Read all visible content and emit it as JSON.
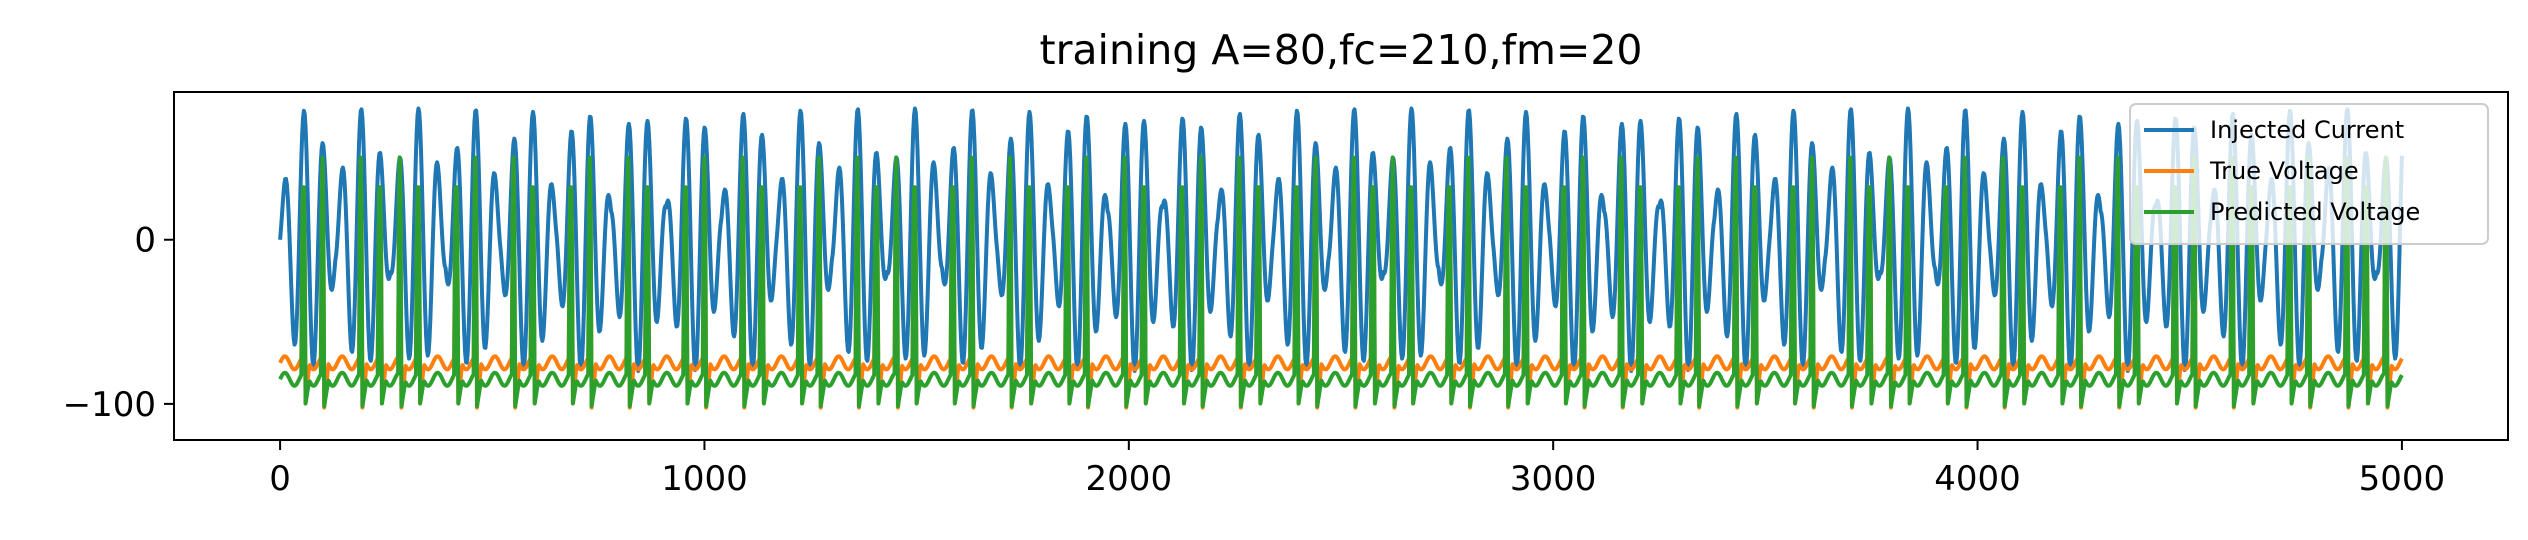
{
  "chart_data": {
    "type": "line",
    "title": "training A=80,fc=210,fm=20",
    "xlabel": "",
    "ylabel": "",
    "xlim": [
      -250,
      5250
    ],
    "ylim": [
      -122,
      90
    ],
    "x_ticks": [
      0,
      1000,
      2000,
      3000,
      4000,
      5000
    ],
    "x_tick_labels": [
      "0",
      "1000",
      "2000",
      "3000",
      "4000",
      "5000"
    ],
    "y_ticks": [
      0,
      -100
    ],
    "y_tick_labels": [
      "0",
      "−100"
    ],
    "grid": false,
    "legend": {
      "placement": "top-right",
      "entries": [
        "Injected Current",
        "True Voltage",
        "Predicted Voltage"
      ]
    },
    "series": [
      {
        "name": "Injected Current",
        "color": "#1f77b4",
        "model": "am_signal",
        "amplitude": 80,
        "fc": 210,
        "fm": 20,
        "x_range": [
          0,
          5000
        ]
      },
      {
        "name": "True Voltage",
        "color": "#ff7f0e",
        "model": "spiking_trace",
        "baseline": -75,
        "spike_peak": 48,
        "trough": -105,
        "x_range": [
          0,
          5000
        ]
      },
      {
        "name": "Predicted Voltage",
        "color": "#2ca02c",
        "model": "spiking_trace",
        "baseline": -85,
        "spike_peak": 50,
        "trough": -103,
        "x_range": [
          0,
          5000
        ]
      }
    ]
  }
}
